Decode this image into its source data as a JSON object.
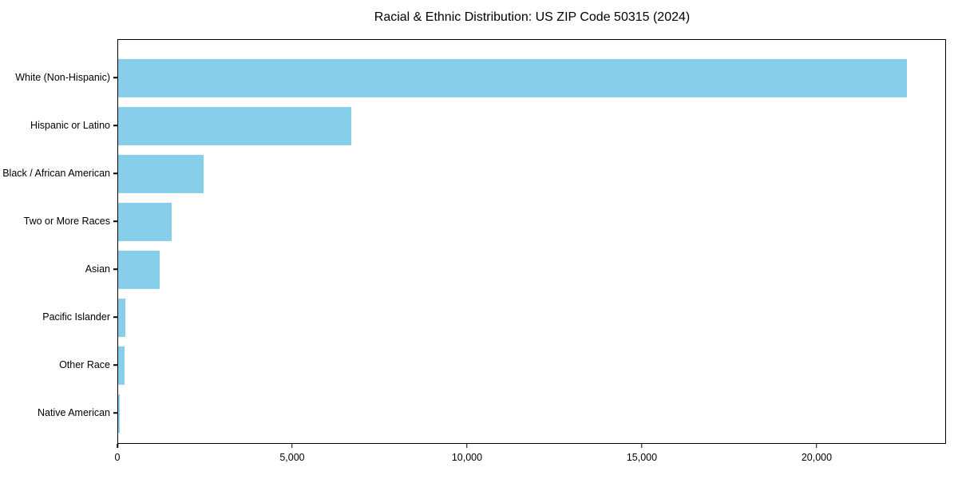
{
  "title": "Racial & Ethnic Distribution: US ZIP Code 50315 (2024)",
  "colors": {
    "bar": "#87CEEB",
    "spine": "#000000",
    "background": "#FFFFFF",
    "text": "#000000"
  },
  "chart_data": {
    "type": "bar",
    "orientation": "horizontal",
    "title": "Racial & Ethnic Distribution: US ZIP Code 50315 (2024)",
    "xlabel": "",
    "ylabel": "",
    "categories": [
      "White (Non-Hispanic)",
      "Hispanic or Latino",
      "Black / African American",
      "Two or More Races",
      "Asian",
      "Pacific Islander",
      "Other Race",
      "Native American"
    ],
    "values": [
      22600,
      6690,
      2450,
      1540,
      1200,
      215,
      185,
      40
    ],
    "xlim": [
      0,
      23700
    ],
    "x_ticks": [
      0,
      5000,
      10000,
      15000,
      20000
    ],
    "x_tick_labels": [
      "0",
      "5,000",
      "10,000",
      "15,000",
      "20,000"
    ],
    "bar_color": "#87CEEB",
    "bar_height_ratio": 0.8,
    "grid": false,
    "legend": "none"
  }
}
